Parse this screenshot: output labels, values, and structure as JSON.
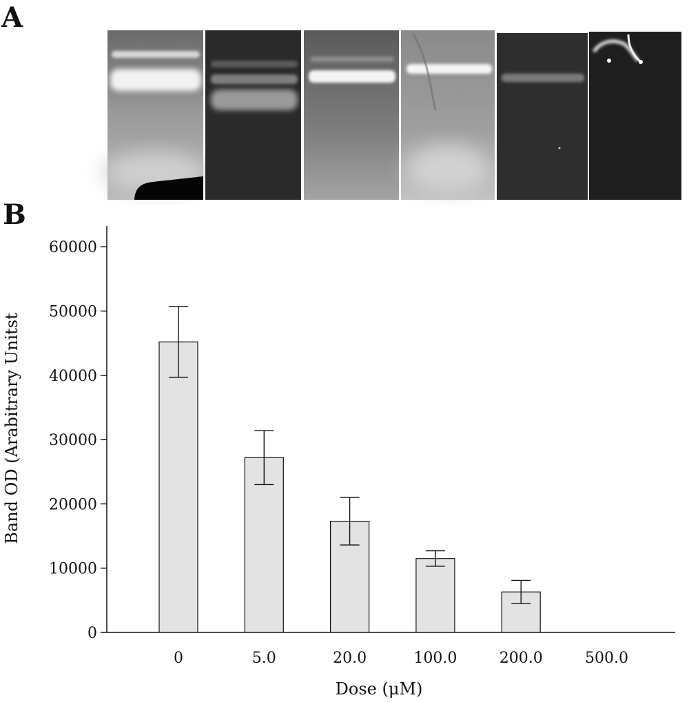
{
  "panels": {
    "a_label": "A",
    "b_label": "B"
  },
  "gel": {
    "lanes": [
      "0",
      "5.0",
      "20.0",
      "100.0",
      "200.0",
      "500.0"
    ]
  },
  "chart_data": {
    "type": "bar",
    "categories": [
      "0",
      "5.0",
      "20.0",
      "100.0",
      "200.0",
      "500.0"
    ],
    "values": [
      45200,
      27200,
      17300,
      11500,
      6300,
      0
    ],
    "errors": [
      5500,
      4200,
      3700,
      1200,
      1800,
      0
    ],
    "title": "",
    "xlabel": "Dose (μM)",
    "ylabel": "Band OD (Arabitrary Unitst",
    "ylim": [
      0,
      63000
    ],
    "yticks": [
      0,
      10000,
      20000,
      30000,
      40000,
      50000,
      60000
    ],
    "grid": false,
    "colors": {
      "bar_fill": "#e3e3e3",
      "bar_stroke": "#111111",
      "axis": "#111111"
    }
  }
}
